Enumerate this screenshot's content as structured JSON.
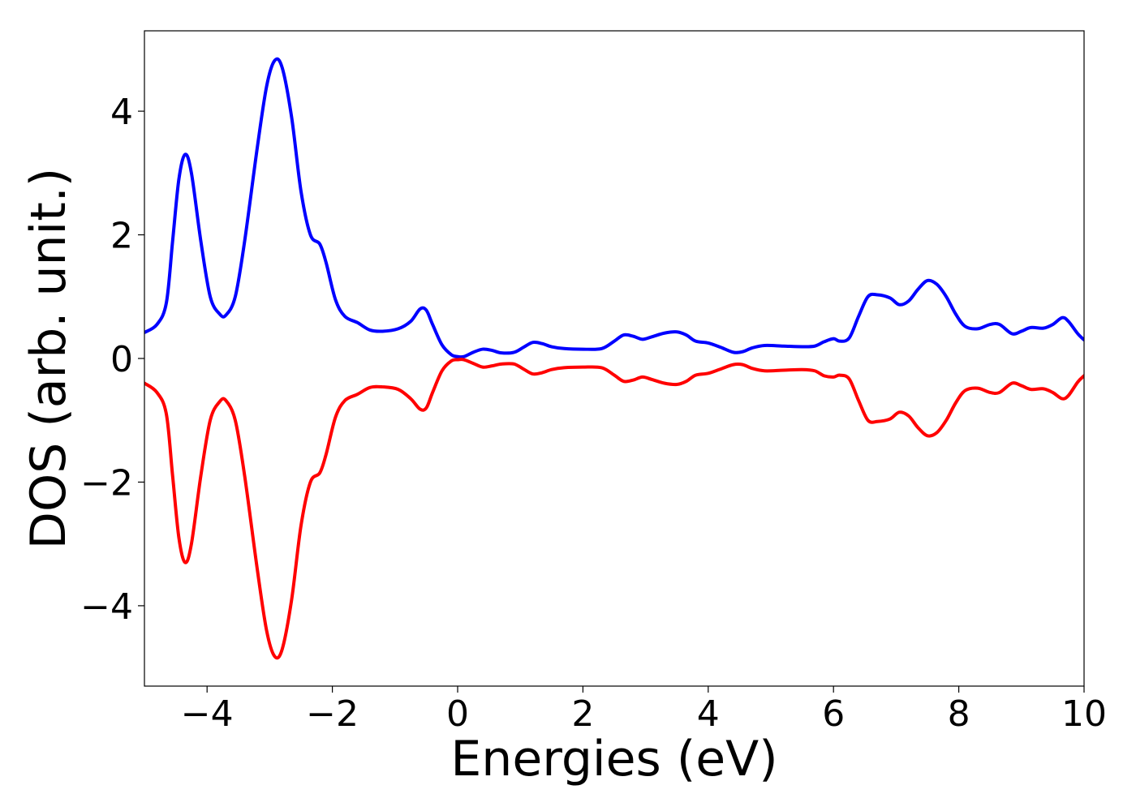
{
  "chart_data": {
    "type": "line",
    "title": "",
    "xlabel": "Energies (eV)",
    "ylabel": "DOS (arb. unit.)",
    "xlim": [
      -5,
      10
    ],
    "ylim": [
      -5.3,
      5.3
    ],
    "grid": false,
    "legend": "none",
    "xticks": [
      -4,
      -2,
      0,
      2,
      4,
      6,
      8,
      10
    ],
    "yticks": [
      -4,
      -2,
      0,
      2,
      4
    ],
    "xtick_labels": [
      "−4",
      "−2",
      "0",
      "2",
      "4",
      "6",
      "8",
      "10"
    ],
    "ytick_labels": [
      "−4",
      "−2",
      "0",
      "2",
      "4"
    ],
    "series": [
      {
        "color": "#0000ff",
        "points": [
          [
            -5.0,
            0.42
          ],
          [
            -4.8,
            0.55
          ],
          [
            -4.65,
            0.9
          ],
          [
            -4.55,
            1.9
          ],
          [
            -4.45,
            2.9
          ],
          [
            -4.35,
            3.3
          ],
          [
            -4.25,
            3.0
          ],
          [
            -4.1,
            1.9
          ],
          [
            -3.95,
            1.0
          ],
          [
            -3.8,
            0.72
          ],
          [
            -3.7,
            0.7
          ],
          [
            -3.55,
            1.0
          ],
          [
            -3.4,
            1.9
          ],
          [
            -3.2,
            3.4
          ],
          [
            -3.05,
            4.4
          ],
          [
            -2.92,
            4.82
          ],
          [
            -2.8,
            4.7
          ],
          [
            -2.65,
            3.9
          ],
          [
            -2.5,
            2.7
          ],
          [
            -2.35,
            2.0
          ],
          [
            -2.2,
            1.85
          ],
          [
            -2.1,
            1.55
          ],
          [
            -1.95,
            0.95
          ],
          [
            -1.8,
            0.68
          ],
          [
            -1.6,
            0.58
          ],
          [
            -1.4,
            0.46
          ],
          [
            -1.2,
            0.44
          ],
          [
            -0.95,
            0.48
          ],
          [
            -0.75,
            0.6
          ],
          [
            -0.6,
            0.8
          ],
          [
            -0.5,
            0.78
          ],
          [
            -0.4,
            0.55
          ],
          [
            -0.25,
            0.22
          ],
          [
            -0.1,
            0.06
          ],
          [
            0.0,
            0.03
          ],
          [
            0.1,
            0.03
          ],
          [
            0.25,
            0.1
          ],
          [
            0.4,
            0.15
          ],
          [
            0.55,
            0.13
          ],
          [
            0.7,
            0.09
          ],
          [
            0.9,
            0.1
          ],
          [
            1.05,
            0.18
          ],
          [
            1.2,
            0.26
          ],
          [
            1.35,
            0.24
          ],
          [
            1.5,
            0.19
          ],
          [
            1.7,
            0.16
          ],
          [
            2.0,
            0.15
          ],
          [
            2.3,
            0.16
          ],
          [
            2.5,
            0.28
          ],
          [
            2.65,
            0.38
          ],
          [
            2.8,
            0.36
          ],
          [
            2.95,
            0.31
          ],
          [
            3.1,
            0.35
          ],
          [
            3.3,
            0.41
          ],
          [
            3.5,
            0.43
          ],
          [
            3.65,
            0.38
          ],
          [
            3.8,
            0.28
          ],
          [
            4.0,
            0.25
          ],
          [
            4.2,
            0.18
          ],
          [
            4.4,
            0.1
          ],
          [
            4.55,
            0.11
          ],
          [
            4.7,
            0.17
          ],
          [
            4.9,
            0.21
          ],
          [
            5.2,
            0.2
          ],
          [
            5.5,
            0.19
          ],
          [
            5.7,
            0.2
          ],
          [
            5.85,
            0.27
          ],
          [
            6.0,
            0.32
          ],
          [
            6.1,
            0.28
          ],
          [
            6.25,
            0.33
          ],
          [
            6.4,
            0.68
          ],
          [
            6.55,
            1.0
          ],
          [
            6.7,
            1.03
          ],
          [
            6.9,
            0.98
          ],
          [
            7.05,
            0.87
          ],
          [
            7.2,
            0.93
          ],
          [
            7.35,
            1.12
          ],
          [
            7.5,
            1.26
          ],
          [
            7.65,
            1.2
          ],
          [
            7.8,
            1.0
          ],
          [
            7.95,
            0.72
          ],
          [
            8.1,
            0.52
          ],
          [
            8.3,
            0.48
          ],
          [
            8.5,
            0.55
          ],
          [
            8.65,
            0.55
          ],
          [
            8.85,
            0.4
          ],
          [
            9.0,
            0.44
          ],
          [
            9.15,
            0.5
          ],
          [
            9.35,
            0.49
          ],
          [
            9.5,
            0.55
          ],
          [
            9.65,
            0.66
          ],
          [
            9.75,
            0.6
          ],
          [
            9.9,
            0.4
          ],
          [
            10.0,
            0.3
          ]
        ]
      },
      {
        "color": "#ff0000",
        "points": [
          [
            -5.0,
            -0.4
          ],
          [
            -4.8,
            -0.55
          ],
          [
            -4.65,
            -0.9
          ],
          [
            -4.55,
            -1.9
          ],
          [
            -4.45,
            -2.9
          ],
          [
            -4.35,
            -3.3
          ],
          [
            -4.25,
            -3.0
          ],
          [
            -4.1,
            -1.9
          ],
          [
            -3.95,
            -1.0
          ],
          [
            -3.8,
            -0.7
          ],
          [
            -3.7,
            -0.68
          ],
          [
            -3.55,
            -1.0
          ],
          [
            -3.4,
            -1.9
          ],
          [
            -3.2,
            -3.4
          ],
          [
            -3.05,
            -4.4
          ],
          [
            -2.92,
            -4.82
          ],
          [
            -2.8,
            -4.7
          ],
          [
            -2.65,
            -3.9
          ],
          [
            -2.5,
            -2.7
          ],
          [
            -2.35,
            -2.0
          ],
          [
            -2.2,
            -1.85
          ],
          [
            -2.1,
            -1.55
          ],
          [
            -1.95,
            -0.95
          ],
          [
            -1.8,
            -0.68
          ],
          [
            -1.6,
            -0.58
          ],
          [
            -1.4,
            -0.47
          ],
          [
            -1.2,
            -0.46
          ],
          [
            -0.95,
            -0.5
          ],
          [
            -0.75,
            -0.65
          ],
          [
            -0.6,
            -0.82
          ],
          [
            -0.5,
            -0.8
          ],
          [
            -0.4,
            -0.55
          ],
          [
            -0.25,
            -0.2
          ],
          [
            -0.1,
            -0.04
          ],
          [
            0.0,
            -0.02
          ],
          [
            0.1,
            -0.02
          ],
          [
            0.25,
            -0.08
          ],
          [
            0.4,
            -0.14
          ],
          [
            0.55,
            -0.12
          ],
          [
            0.7,
            -0.09
          ],
          [
            0.9,
            -0.09
          ],
          [
            1.05,
            -0.17
          ],
          [
            1.2,
            -0.25
          ],
          [
            1.35,
            -0.23
          ],
          [
            1.5,
            -0.18
          ],
          [
            1.7,
            -0.15
          ],
          [
            2.0,
            -0.14
          ],
          [
            2.3,
            -0.15
          ],
          [
            2.5,
            -0.27
          ],
          [
            2.65,
            -0.37
          ],
          [
            2.8,
            -0.35
          ],
          [
            2.95,
            -0.3
          ],
          [
            3.1,
            -0.34
          ],
          [
            3.3,
            -0.4
          ],
          [
            3.5,
            -0.42
          ],
          [
            3.65,
            -0.37
          ],
          [
            3.8,
            -0.27
          ],
          [
            4.0,
            -0.24
          ],
          [
            4.2,
            -0.17
          ],
          [
            4.4,
            -0.1
          ],
          [
            4.55,
            -0.1
          ],
          [
            4.7,
            -0.16
          ],
          [
            4.9,
            -0.2
          ],
          [
            5.2,
            -0.19
          ],
          [
            5.5,
            -0.18
          ],
          [
            5.7,
            -0.2
          ],
          [
            5.85,
            -0.28
          ],
          [
            6.0,
            -0.3
          ],
          [
            6.1,
            -0.27
          ],
          [
            6.25,
            -0.33
          ],
          [
            6.4,
            -0.68
          ],
          [
            6.55,
            -1.0
          ],
          [
            6.7,
            -1.02
          ],
          [
            6.9,
            -0.98
          ],
          [
            7.05,
            -0.87
          ],
          [
            7.2,
            -0.93
          ],
          [
            7.35,
            -1.12
          ],
          [
            7.5,
            -1.25
          ],
          [
            7.65,
            -1.2
          ],
          [
            7.8,
            -1.0
          ],
          [
            7.95,
            -0.72
          ],
          [
            8.1,
            -0.52
          ],
          [
            8.3,
            -0.48
          ],
          [
            8.5,
            -0.55
          ],
          [
            8.65,
            -0.55
          ],
          [
            8.85,
            -0.4
          ],
          [
            9.0,
            -0.44
          ],
          [
            9.15,
            -0.5
          ],
          [
            9.35,
            -0.49
          ],
          [
            9.5,
            -0.55
          ],
          [
            9.65,
            -0.65
          ],
          [
            9.75,
            -0.6
          ],
          [
            9.9,
            -0.38
          ],
          [
            10.0,
            -0.28
          ]
        ]
      }
    ]
  }
}
